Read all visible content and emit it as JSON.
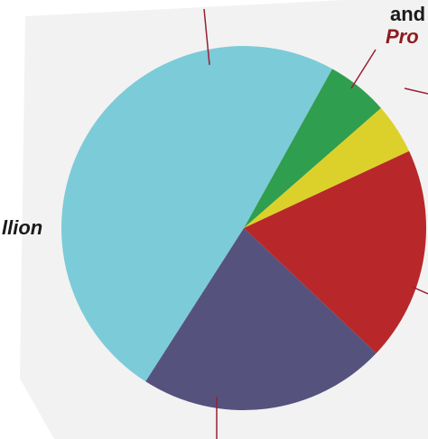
{
  "chart_data": {
    "type": "pie",
    "title": "",
    "start_angle_deg": -61,
    "slices": [
      {
        "value": 5.5,
        "color": "#2f9e4f"
      },
      {
        "value": 4.5,
        "color": "#dcd12a"
      },
      {
        "value": 19.0,
        "color": "#b8282a"
      },
      {
        "value": 22.0,
        "color": "#56527e"
      },
      {
        "value": 49.0,
        "color": "#7ccbd8"
      }
    ],
    "background_color": "#f2f2f2",
    "leader_line_color": "#9a1f35"
  },
  "labels": {
    "partial_top_right_1": "and",
    "partial_top_right_2": "Pro",
    "partial_left": "llion"
  }
}
